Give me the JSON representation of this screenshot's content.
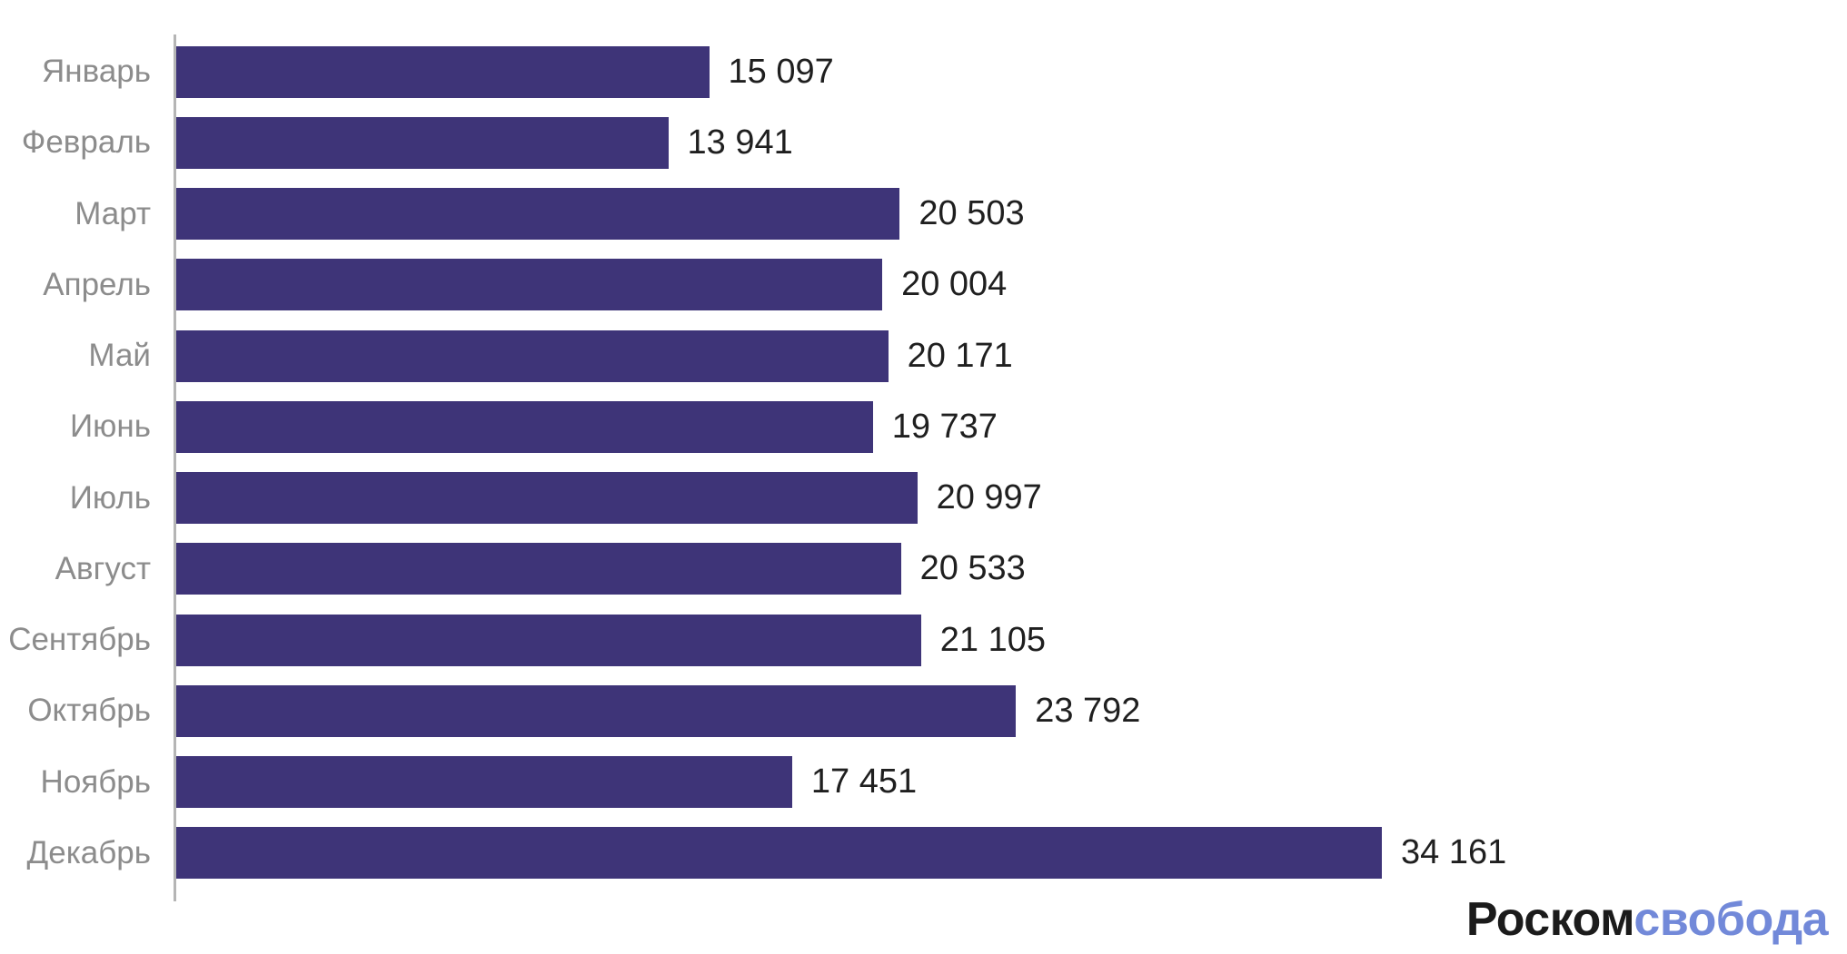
{
  "chart_data": {
    "type": "bar",
    "orientation": "horizontal",
    "categories": [
      "Январь",
      "Февраль",
      "Март",
      "Апрель",
      "Май",
      "Июнь",
      "Июль",
      "Август",
      "Сентябрь",
      "Октябрь",
      "Ноябрь",
      "Декабрь"
    ],
    "values": [
      15097,
      13941,
      20503,
      20004,
      20171,
      19737,
      20997,
      20533,
      21105,
      23792,
      17451,
      34161
    ],
    "value_labels": [
      "15 097",
      "13 941",
      "20 503",
      "20 004",
      "20 171",
      "19 737",
      "20 997",
      "20 533",
      "21 105",
      "23 792",
      "17 451",
      "34 161"
    ],
    "xlim": [
      0,
      34161
    ],
    "grid": false,
    "legend": "none",
    "bar_color": "#3e3478",
    "category_label_color": "#8c8c8c",
    "value_label_color": "#1f1f1f",
    "axis_line_color": "#b5b5b5"
  },
  "logo": {
    "part1": "Роском",
    "part2": "свобода",
    "part1_color": "#1b1b1b",
    "part2_color": "#7289d9"
  }
}
